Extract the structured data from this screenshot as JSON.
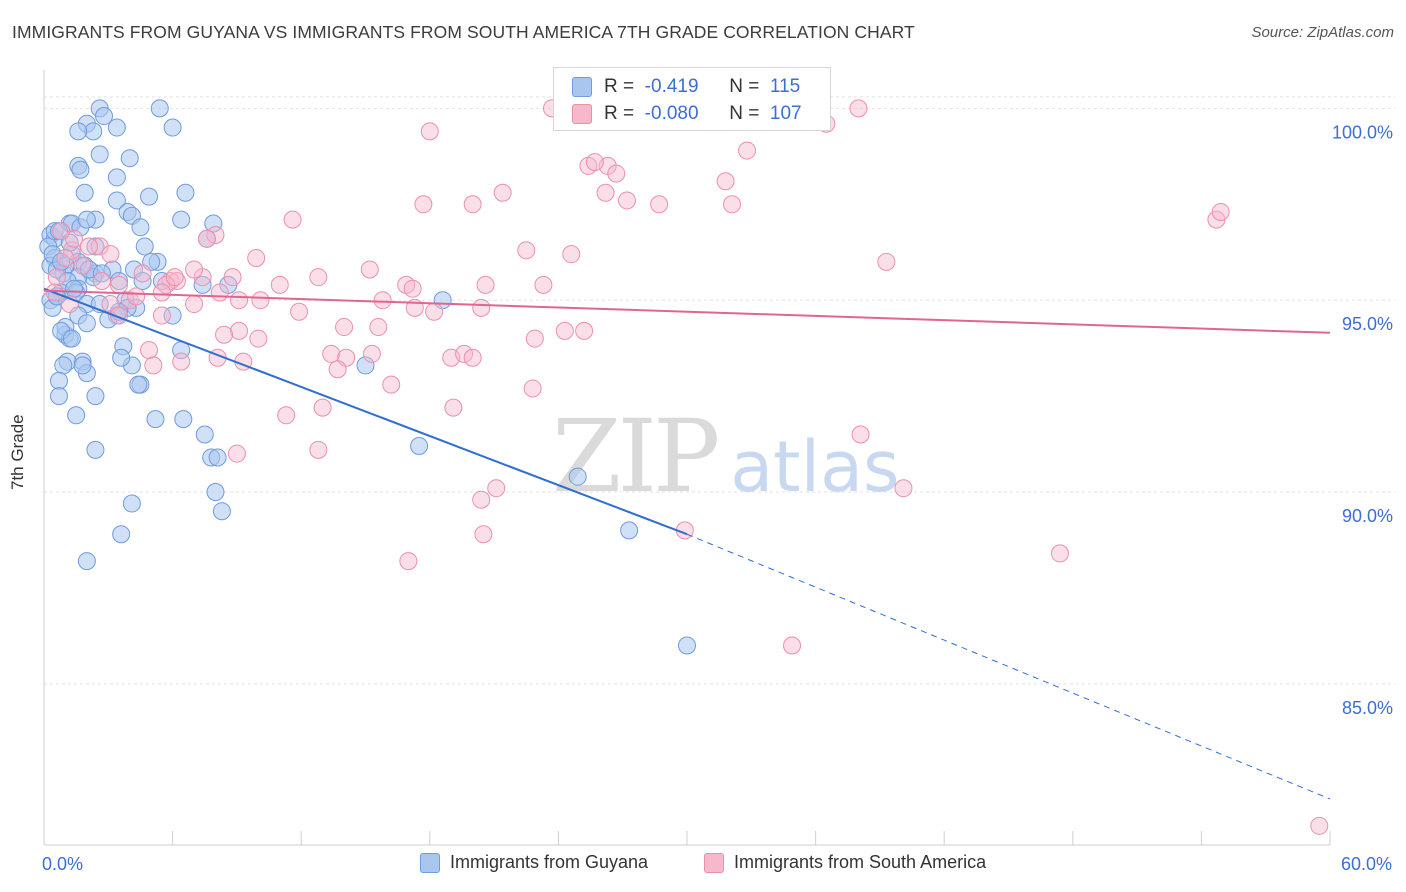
{
  "header": {
    "title": "IMMIGRANTS FROM GUYANA VS IMMIGRANTS FROM SOUTH AMERICA 7TH GRADE CORRELATION CHART",
    "source": "Source: ZipAtlas.com"
  },
  "watermark": {
    "zip": "ZIP",
    "atlas": "atlas"
  },
  "stats": {
    "row1": {
      "r_label": "R =",
      "r_value": "-0.419",
      "n_label": "N =",
      "n_value": "115"
    },
    "row2": {
      "r_label": "R =",
      "r_value": "-0.080",
      "n_label": "N =",
      "n_value": "107"
    }
  },
  "legend": {
    "series1": "Immigrants from Guyana",
    "series2": "Immigrants from South America"
  },
  "colors": {
    "blue_fill": "#a9c6ef",
    "blue_stroke": "#6f9be0",
    "blue_line": "#2f6fcf",
    "pink_fill": "#f7b8cb",
    "pink_stroke": "#ec8fae",
    "pink_line": "#e06590",
    "tick_label": "#3b6fd4",
    "grid": "#e2e2e2"
  },
  "chart_data": {
    "type": "scatter",
    "title": "IMMIGRANTS FROM GUYANA VS IMMIGRANTS FROM SOUTH AMERICA 7TH GRADE CORRELATION CHART",
    "xlabel": "",
    "ylabel": "7th Grade",
    "xlim": [
      0,
      60
    ],
    "ylim": [
      80.8,
      101.0
    ],
    "x_tick_labels": [
      "0.0%",
      "60.0%"
    ],
    "y_ticks": [
      85,
      90,
      95,
      100
    ],
    "y_tick_labels": [
      "85.0%",
      "90.0%",
      "95.0%",
      "100.0%"
    ],
    "grid": true,
    "legend_position": "bottom",
    "series": [
      {
        "name": "Immigrants from Guyana",
        "trend": {
          "x0": 0,
          "y0": 95.3,
          "x1": 30,
          "y1": 88.9,
          "dash_to_x": 60,
          "dash_to_y": 82.0
        },
        "points": [
          [
            2.6,
            100.0
          ],
          [
            2.8,
            99.8
          ],
          [
            5.4,
            100.0
          ],
          [
            2.0,
            99.6
          ],
          [
            6.0,
            99.5
          ],
          [
            3.4,
            99.5
          ],
          [
            2.3,
            99.4
          ],
          [
            1.6,
            99.4
          ],
          [
            2.6,
            98.8
          ],
          [
            4.0,
            98.7
          ],
          [
            1.6,
            98.5
          ],
          [
            1.7,
            98.4
          ],
          [
            3.4,
            98.2
          ],
          [
            1.9,
            97.8
          ],
          [
            4.9,
            97.7
          ],
          [
            6.6,
            97.8
          ],
          [
            3.4,
            97.6
          ],
          [
            3.9,
            97.3
          ],
          [
            4.1,
            97.2
          ],
          [
            2.4,
            97.1
          ],
          [
            1.2,
            97.0
          ],
          [
            1.3,
            97.0
          ],
          [
            6.4,
            97.1
          ],
          [
            7.9,
            97.0
          ],
          [
            4.5,
            96.9
          ],
          [
            0.3,
            96.7
          ],
          [
            0.5,
            96.6
          ],
          [
            0.2,
            96.4
          ],
          [
            2.4,
            96.4
          ],
          [
            4.7,
            96.4
          ],
          [
            1.3,
            96.2
          ],
          [
            7.6,
            96.6
          ],
          [
            1.6,
            96.0
          ],
          [
            1.9,
            95.9
          ],
          [
            0.5,
            96.1
          ],
          [
            0.3,
            95.9
          ],
          [
            0.9,
            95.7
          ],
          [
            1.0,
            95.9
          ],
          [
            0.6,
            95.8
          ],
          [
            5.3,
            96.0
          ],
          [
            5.0,
            96.0
          ],
          [
            4.2,
            95.8
          ],
          [
            3.2,
            95.8
          ],
          [
            2.4,
            95.7
          ],
          [
            2.3,
            95.6
          ],
          [
            1.6,
            95.6
          ],
          [
            1.1,
            95.5
          ],
          [
            5.5,
            95.5
          ],
          [
            7.4,
            95.4
          ],
          [
            8.6,
            95.4
          ],
          [
            3.5,
            95.5
          ],
          [
            4.6,
            95.5
          ],
          [
            1.6,
            95.3
          ],
          [
            0.8,
            95.2
          ],
          [
            0.6,
            95.1
          ],
          [
            0.3,
            95.0
          ],
          [
            0.4,
            94.8
          ],
          [
            1.5,
            95.2
          ],
          [
            2.0,
            94.9
          ],
          [
            3.8,
            95.0
          ],
          [
            4.3,
            94.8
          ],
          [
            3.9,
            94.8
          ],
          [
            3.4,
            94.6
          ],
          [
            3.0,
            94.5
          ],
          [
            1.6,
            94.6
          ],
          [
            6.0,
            94.6
          ],
          [
            2.0,
            94.4
          ],
          [
            1.0,
            94.1
          ],
          [
            1.2,
            94.0
          ],
          [
            3.7,
            93.8
          ],
          [
            6.4,
            93.7
          ],
          [
            1.8,
            93.4
          ],
          [
            1.1,
            93.4
          ],
          [
            0.9,
            93.3
          ],
          [
            4.1,
            93.3
          ],
          [
            2.0,
            93.1
          ],
          [
            0.7,
            92.9
          ],
          [
            4.5,
            92.8
          ],
          [
            0.7,
            92.5
          ],
          [
            2.4,
            92.5
          ],
          [
            1.5,
            92.0
          ],
          [
            6.5,
            91.9
          ],
          [
            5.2,
            91.9
          ],
          [
            7.5,
            91.5
          ],
          [
            2.4,
            91.1
          ],
          [
            7.8,
            90.9
          ],
          [
            8.1,
            90.9
          ],
          [
            8.0,
            90.0
          ],
          [
            4.1,
            89.7
          ],
          [
            8.3,
            89.5
          ],
          [
            3.6,
            88.9
          ],
          [
            2.0,
            88.2
          ],
          [
            15.0,
            93.3
          ],
          [
            17.5,
            91.2
          ],
          [
            18.6,
            95.0
          ],
          [
            24.9,
            90.4
          ],
          [
            27.3,
            89.0
          ],
          [
            30.0,
            86.0
          ],
          [
            0.5,
            96.8
          ],
          [
            0.7,
            96.8
          ],
          [
            1.7,
            96.9
          ],
          [
            2.0,
            97.1
          ],
          [
            1.2,
            96.5
          ],
          [
            0.4,
            96.2
          ],
          [
            0.8,
            96.0
          ],
          [
            2.1,
            95.8
          ],
          [
            2.7,
            95.7
          ],
          [
            1.4,
            95.3
          ],
          [
            0.6,
            95.1
          ],
          [
            1.0,
            94.3
          ],
          [
            0.8,
            94.2
          ],
          [
            1.3,
            94.0
          ],
          [
            2.6,
            94.9
          ],
          [
            3.5,
            94.7
          ],
          [
            1.8,
            93.3
          ],
          [
            4.4,
            92.8
          ],
          [
            3.6,
            93.5
          ]
        ]
      },
      {
        "name": "Immigrants from South America",
        "trend": {
          "x0": 0,
          "y0": 95.25,
          "x1": 60,
          "y1": 94.15
        },
        "points": [
          [
            23.7,
            100.0
          ],
          [
            27.0,
            100.0
          ],
          [
            38.0,
            100.0
          ],
          [
            36.5,
            99.6
          ],
          [
            18.0,
            99.4
          ],
          [
            25.4,
            98.5
          ],
          [
            26.3,
            98.5
          ],
          [
            32.8,
            98.9
          ],
          [
            25.7,
            98.6
          ],
          [
            26.7,
            98.3
          ],
          [
            26.2,
            97.8
          ],
          [
            31.8,
            98.1
          ],
          [
            21.4,
            97.8
          ],
          [
            27.2,
            97.6
          ],
          [
            28.7,
            97.5
          ],
          [
            32.1,
            97.5
          ],
          [
            17.7,
            97.5
          ],
          [
            20.0,
            97.5
          ],
          [
            11.6,
            97.1
          ],
          [
            54.7,
            97.1
          ],
          [
            54.9,
            97.3
          ],
          [
            8.0,
            96.7
          ],
          [
            2.6,
            96.4
          ],
          [
            1.3,
            96.3
          ],
          [
            22.5,
            96.3
          ],
          [
            24.6,
            96.2
          ],
          [
            9.9,
            96.1
          ],
          [
            7.6,
            96.6
          ],
          [
            39.3,
            96.0
          ],
          [
            15.2,
            95.8
          ],
          [
            12.8,
            95.6
          ],
          [
            7.4,
            95.6
          ],
          [
            4.6,
            95.7
          ],
          [
            5.9,
            95.5
          ],
          [
            6.2,
            95.5
          ],
          [
            5.7,
            95.4
          ],
          [
            11.0,
            95.4
          ],
          [
            16.9,
            95.4
          ],
          [
            20.6,
            95.4
          ],
          [
            23.3,
            95.4
          ],
          [
            17.2,
            95.3
          ],
          [
            8.2,
            95.2
          ],
          [
            10.1,
            95.0
          ],
          [
            15.8,
            95.0
          ],
          [
            7.0,
            94.9
          ],
          [
            9.1,
            95.0
          ],
          [
            17.3,
            94.8
          ],
          [
            18.2,
            94.7
          ],
          [
            20.4,
            94.8
          ],
          [
            11.9,
            94.7
          ],
          [
            3.1,
            94.9
          ],
          [
            3.5,
            94.6
          ],
          [
            5.5,
            94.6
          ],
          [
            14.0,
            94.3
          ],
          [
            15.6,
            94.3
          ],
          [
            9.1,
            94.2
          ],
          [
            8.4,
            94.1
          ],
          [
            10.0,
            94.0
          ],
          [
            22.9,
            94.0
          ],
          [
            24.3,
            94.2
          ],
          [
            25.2,
            94.2
          ],
          [
            13.4,
            93.6
          ],
          [
            14.1,
            93.5
          ],
          [
            15.3,
            93.6
          ],
          [
            19.0,
            93.5
          ],
          [
            19.6,
            93.6
          ],
          [
            20.0,
            93.5
          ],
          [
            8.1,
            93.5
          ],
          [
            9.3,
            93.4
          ],
          [
            4.9,
            93.7
          ],
          [
            5.1,
            93.3
          ],
          [
            6.4,
            93.4
          ],
          [
            13.7,
            93.2
          ],
          [
            16.2,
            92.8
          ],
          [
            22.8,
            92.7
          ],
          [
            13.0,
            92.2
          ],
          [
            11.3,
            92.0
          ],
          [
            19.1,
            92.2
          ],
          [
            9.0,
            91.0
          ],
          [
            12.8,
            91.1
          ],
          [
            38.1,
            91.5
          ],
          [
            21.1,
            90.1
          ],
          [
            20.4,
            89.8
          ],
          [
            40.1,
            90.1
          ],
          [
            17.0,
            88.2
          ],
          [
            20.5,
            88.9
          ],
          [
            29.9,
            89.0
          ],
          [
            47.4,
            88.4
          ],
          [
            34.9,
            86.0
          ],
          [
            59.5,
            81.3
          ],
          [
            1.4,
            96.6
          ],
          [
            2.1,
            96.4
          ],
          [
            1.0,
            96.1
          ],
          [
            3.1,
            96.2
          ],
          [
            1.8,
            95.9
          ],
          [
            0.6,
            95.6
          ],
          [
            2.7,
            95.5
          ],
          [
            0.5,
            95.2
          ],
          [
            1.2,
            94.9
          ],
          [
            4.0,
            95.0
          ],
          [
            5.5,
            95.2
          ],
          [
            6.1,
            95.6
          ],
          [
            7.0,
            95.8
          ],
          [
            3.5,
            95.4
          ],
          [
            0.8,
            96.8
          ],
          [
            8.8,
            95.6
          ],
          [
            4.3,
            95.1
          ]
        ]
      }
    ]
  }
}
